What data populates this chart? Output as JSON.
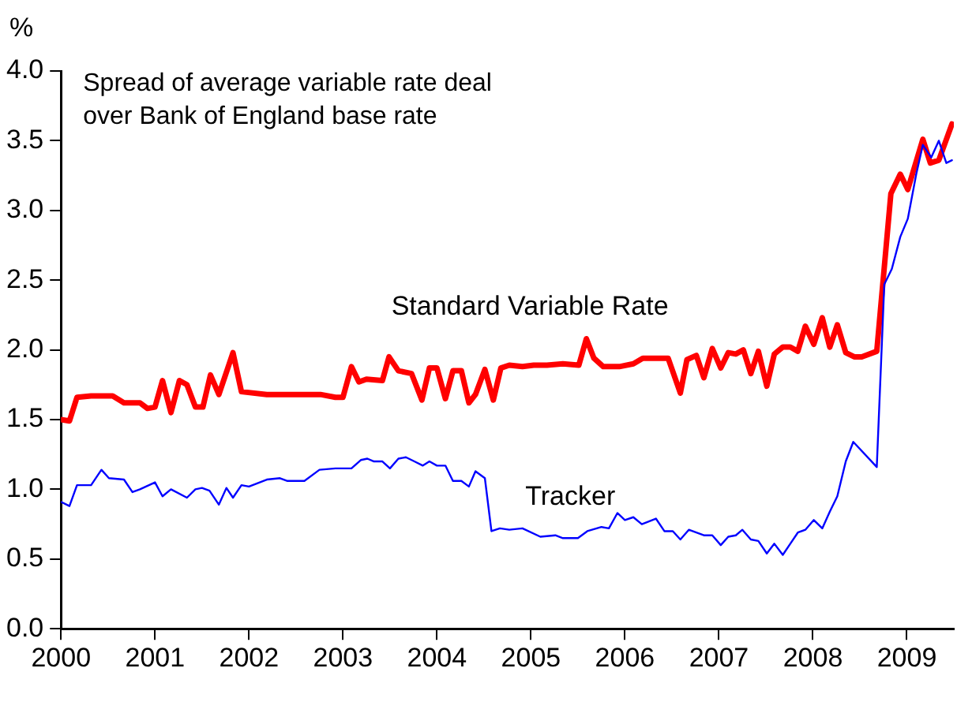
{
  "chart_data": {
    "type": "line",
    "ylabel": "%",
    "annotations": [
      "Spread of average variable rate deal\nover Bank of England base rate"
    ],
    "xlim": [
      2000,
      2009.5
    ],
    "xticks": [
      2000,
      2001,
      2002,
      2003,
      2004,
      2005,
      2006,
      2007,
      2008,
      2009
    ],
    "ylim": [
      0,
      4
    ],
    "yticks": [
      {
        "value": 0,
        "label": "0.0"
      },
      {
        "value": 0.5,
        "label": "0.5"
      },
      {
        "value": 1,
        "label": "1.0"
      },
      {
        "value": 1.5,
        "label": "1.5"
      },
      {
        "value": 2,
        "label": "2.0"
      },
      {
        "value": 2.5,
        "label": "2.5"
      },
      {
        "value": 3,
        "label": "3.0"
      },
      {
        "value": 3.5,
        "label": "3.5"
      },
      {
        "value": 4,
        "label": "4.0"
      }
    ],
    "grid": false,
    "legend": false,
    "marker": "none",
    "line_style": "solid",
    "series": [
      {
        "name": "Standard Variable Rate",
        "color": "#ff0000",
        "x": [
          2000.0,
          2000.09,
          2000.17,
          2000.32,
          2000.55,
          2000.67,
          2000.84,
          2000.92,
          2001.0,
          2001.08,
          2001.17,
          2001.26,
          2001.34,
          2001.43,
          2001.51,
          2001.59,
          2001.68,
          2001.83,
          2001.92,
          2002.19,
          2002.41,
          2002.76,
          2002.92,
          2003.0,
          2003.09,
          2003.17,
          2003.25,
          2003.42,
          2003.49,
          2003.59,
          2003.73,
          2003.84,
          2003.92,
          2004.0,
          2004.09,
          2004.17,
          2004.26,
          2004.34,
          2004.41,
          2004.51,
          2004.6,
          2004.68,
          2004.77,
          2004.91,
          2005.03,
          2005.17,
          2005.34,
          2005.51,
          2005.59,
          2005.67,
          2005.77,
          2005.94,
          2006.09,
          2006.19,
          2006.46,
          2006.59,
          2006.66,
          2006.76,
          2006.84,
          2006.93,
          2007.02,
          2007.1,
          2007.18,
          2007.26,
          2007.34,
          2007.42,
          2007.51,
          2007.59,
          2007.68,
          2007.76,
          2007.84,
          2007.92,
          2008.01,
          2008.1,
          2008.18,
          2008.26,
          2008.35,
          2008.44,
          2008.52,
          2008.68,
          2008.83,
          2008.93,
          2009.01,
          2009.17,
          2009.25,
          2009.34,
          2009.48
        ],
        "values": [
          1.5,
          1.49,
          1.66,
          1.67,
          1.67,
          1.62,
          1.62,
          1.58,
          1.59,
          1.78,
          1.55,
          1.78,
          1.75,
          1.59,
          1.59,
          1.82,
          1.68,
          1.98,
          1.7,
          1.68,
          1.68,
          1.68,
          1.66,
          1.66,
          1.88,
          1.77,
          1.79,
          1.78,
          1.95,
          1.85,
          1.83,
          1.64,
          1.87,
          1.87,
          1.65,
          1.85,
          1.85,
          1.62,
          1.68,
          1.86,
          1.64,
          1.87,
          1.89,
          1.88,
          1.89,
          1.89,
          1.9,
          1.89,
          2.08,
          1.94,
          1.88,
          1.88,
          1.9,
          1.94,
          1.94,
          1.69,
          1.93,
          1.96,
          1.8,
          2.01,
          1.87,
          1.98,
          1.97,
          2.0,
          1.83,
          1.99,
          1.74,
          1.97,
          2.02,
          2.02,
          1.99,
          2.17,
          2.04,
          2.23,
          2.02,
          2.18,
          1.98,
          1.95,
          1.95,
          1.99,
          3.12,
          3.26,
          3.15,
          3.51,
          3.34,
          3.36,
          3.62
        ]
      },
      {
        "name": "Tracker",
        "color": "#0000ff",
        "x": [
          2000.0,
          2000.09,
          2000.17,
          2000.32,
          2000.43,
          2000.51,
          2000.67,
          2000.76,
          2000.84,
          2001.0,
          2001.08,
          2001.17,
          2001.34,
          2001.43,
          2001.5,
          2001.58,
          2001.68,
          2001.76,
          2001.83,
          2001.92,
          2002.0,
          2002.19,
          2002.33,
          2002.41,
          2002.59,
          2002.75,
          2002.92,
          2003.09,
          2003.19,
          2003.26,
          2003.33,
          2003.42,
          2003.5,
          2003.59,
          2003.67,
          2003.76,
          2003.85,
          2003.92,
          2004.0,
          2004.09,
          2004.17,
          2004.26,
          2004.34,
          2004.41,
          2004.51,
          2004.58,
          2004.67,
          2004.77,
          2004.91,
          2005.1,
          2005.26,
          2005.34,
          2005.5,
          2005.6,
          2005.75,
          2005.83,
          2005.92,
          2006.0,
          2006.09,
          2006.18,
          2006.33,
          2006.42,
          2006.51,
          2006.59,
          2006.68,
          2006.84,
          2006.93,
          2007.02,
          2007.1,
          2007.18,
          2007.25,
          2007.34,
          2007.42,
          2007.51,
          2007.59,
          2007.68,
          2007.76,
          2007.84,
          2007.92,
          2008.01,
          2008.1,
          2008.18,
          2008.26,
          2008.35,
          2008.43,
          2008.68,
          2008.76,
          2008.84,
          2008.93,
          2009.01,
          2009.1,
          2009.17,
          2009.26,
          2009.34,
          2009.42,
          2009.48
        ],
        "values": [
          0.91,
          0.88,
          1.03,
          1.03,
          1.14,
          1.08,
          1.07,
          0.98,
          1.0,
          1.05,
          0.95,
          1.0,
          0.94,
          1.0,
          1.01,
          0.99,
          0.89,
          1.01,
          0.94,
          1.03,
          1.02,
          1.07,
          1.08,
          1.06,
          1.06,
          1.14,
          1.15,
          1.15,
          1.21,
          1.22,
          1.2,
          1.2,
          1.15,
          1.22,
          1.23,
          1.2,
          1.17,
          1.2,
          1.17,
          1.17,
          1.06,
          1.06,
          1.02,
          1.13,
          1.08,
          0.7,
          0.72,
          0.71,
          0.72,
          0.66,
          0.67,
          0.65,
          0.65,
          0.7,
          0.73,
          0.72,
          0.83,
          0.78,
          0.8,
          0.75,
          0.79,
          0.7,
          0.7,
          0.64,
          0.71,
          0.67,
          0.67,
          0.6,
          0.66,
          0.67,
          0.71,
          0.64,
          0.63,
          0.54,
          0.61,
          0.53,
          0.61,
          0.69,
          0.71,
          0.78,
          0.72,
          0.84,
          0.95,
          1.2,
          1.34,
          1.16,
          2.47,
          2.58,
          2.81,
          2.94,
          3.26,
          3.47,
          3.38,
          3.5,
          3.34,
          3.36
        ]
      }
    ]
  }
}
